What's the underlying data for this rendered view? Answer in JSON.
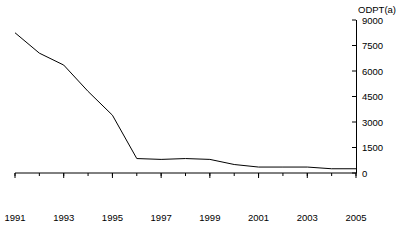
{
  "chart_data": {
    "type": "line",
    "y_label": "ODPT(a)",
    "x": [
      1991,
      1992,
      1993,
      1994,
      1995,
      1996,
      1997,
      1998,
      1999,
      2000,
      2001,
      2002,
      2003,
      2004,
      2005
    ],
    "values": [
      8250,
      7050,
      6350,
      4800,
      3400,
      850,
      800,
      850,
      800,
      500,
      350,
      350,
      350,
      250,
      250
    ],
    "color": "#000000",
    "xlim": [
      1991,
      2005
    ],
    "xticks": [
      1991,
      1993,
      1995,
      1997,
      1999,
      2001,
      2003,
      2005
    ],
    "ylim": [
      0,
      9000
    ],
    "yticks": [
      0,
      1500,
      3000,
      4500,
      6000,
      7500,
      9000
    ],
    "grid": false
  }
}
